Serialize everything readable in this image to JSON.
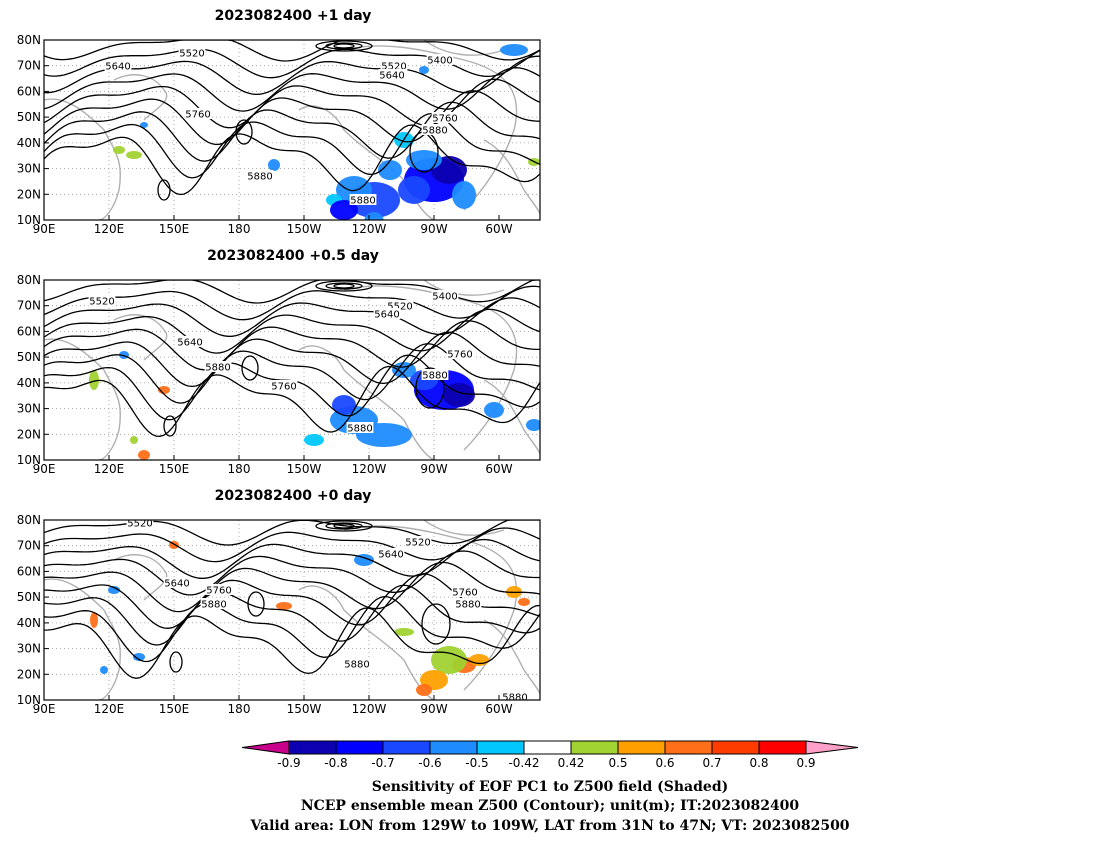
{
  "panels": [
    {
      "title": "2023082400  +1 day",
      "contour_labels": [
        "5520",
        "5640",
        "5520",
        "5640",
        "5400",
        "5760",
        "5760",
        "5880",
        "5880",
        "5880"
      ]
    },
    {
      "title": "2023082400  +0.5 day",
      "contour_labels": [
        "5520",
        "5520",
        "5640",
        "5400",
        "5640",
        "5880",
        "5760",
        "5760",
        "5880",
        "5880"
      ]
    },
    {
      "title": "2023082400  +0 day",
      "contour_labels": [
        "5520",
        "5520",
        "5640",
        "5640",
        "5760",
        "5880",
        "5760",
        "5880",
        "5880",
        "5880"
      ]
    }
  ],
  "axes": {
    "lon_ticks": [
      "90E",
      "120E",
      "150E",
      "180",
      "150W",
      "120W",
      "90W",
      "60W"
    ],
    "lat_ticks": [
      "80N",
      "70N",
      "60N",
      "50N",
      "40N",
      "30N",
      "20N",
      "10N"
    ]
  },
  "colorbar": {
    "labels": [
      "-0.9",
      "-0.8",
      "-0.7",
      "-0.6",
      "-0.5",
      "-0.42",
      "0.42",
      "0.5",
      "0.6",
      "0.7",
      "0.8",
      "0.9"
    ],
    "colors": [
      "#0d00b0",
      "#0000ff",
      "#1a48ff",
      "#1e8cff",
      "#00c8ff",
      "#ffffff",
      "#a0d232",
      "#ffa000",
      "#ff6f18",
      "#ff3c00",
      "#ff0000"
    ],
    "low_arrow_color": "#c8008c",
    "high_arrow_color": "#ffa0c8"
  },
  "caption": {
    "line1": "Sensitivity of EOF PC1 to Z500 field (Shaded)",
    "line2": "NCEP ensemble mean Z500 (Contour); unit(m); IT:2023082400",
    "line3": "Valid area: LON from 129W to 109W, LAT from 31N to 47N; VT: 2023082500"
  }
}
